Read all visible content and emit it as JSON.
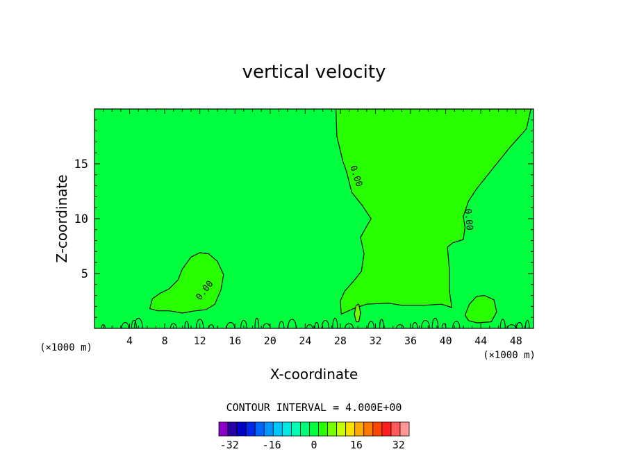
{
  "chart_data": {
    "type": "heatmap",
    "title": "vertical velocity",
    "xlabel": "X-coordinate",
    "ylabel": "Z-coordinate",
    "x_unit": "(×1000 m)",
    "x_unit_right": "(×1000 m)",
    "xlim": [
      0,
      50
    ],
    "ylim": [
      0,
      20
    ],
    "x_ticks": [
      4,
      8,
      12,
      16,
      20,
      24,
      28,
      32,
      36,
      40,
      44,
      48
    ],
    "y_ticks": [
      5,
      10,
      15
    ],
    "contour_interval_text": "CONTOUR INTERVAL = 4.000E+00",
    "contour_labels": [
      "0.00",
      "0.00",
      "0.00"
    ],
    "colorbar": {
      "min": -36,
      "max": 36,
      "step": 4,
      "tick_labels": [
        "-32",
        "-16",
        "0",
        "16",
        "32"
      ],
      "tick_values": [
        -32,
        -16,
        0,
        16,
        32
      ],
      "colors": [
        "#8a00c8",
        "#2800a8",
        "#0000c8",
        "#0028e8",
        "#0064ff",
        "#0096ff",
        "#00c8ff",
        "#00e8e8",
        "#00ffb4",
        "#00ff78",
        "#00ff3c",
        "#28ff00",
        "#78ff00",
        "#c8ff00",
        "#ffe100",
        "#ffaa00",
        "#ff7800",
        "#ff4600",
        "#ff1e1e",
        "#ff5a5a",
        "#ff9696"
      ]
    },
    "background_color": "#00ff3c",
    "regions": [
      {
        "name": "updraft-column",
        "color": "#28ff00",
        "outline": [
          [
            27.5,
            20
          ],
          [
            27.6,
            17.5
          ],
          [
            28.3,
            15.2
          ],
          [
            28.7,
            14.3
          ],
          [
            29.3,
            12.4
          ],
          [
            30.5,
            11.2
          ],
          [
            31.5,
            10
          ],
          [
            31,
            9.3
          ],
          [
            30.3,
            8.3
          ],
          [
            30.7,
            6.8
          ],
          [
            30.4,
            5.2
          ],
          [
            29.5,
            4.3
          ],
          [
            28.5,
            3.4
          ],
          [
            28,
            2.5
          ],
          [
            28.1,
            1.3
          ],
          [
            29.5,
            1.8
          ],
          [
            31,
            2.2
          ],
          [
            33.5,
            2.3
          ],
          [
            35,
            2.1
          ],
          [
            37.5,
            2.1
          ],
          [
            39.5,
            2.2
          ],
          [
            40.7,
            1.9
          ],
          [
            40.4,
            3.5
          ],
          [
            40.4,
            5.5
          ],
          [
            40.2,
            7.4
          ],
          [
            40.8,
            7.8
          ],
          [
            42,
            8.1
          ],
          [
            42.2,
            9.2
          ],
          [
            42,
            10.2
          ],
          [
            42.6,
            11.6
          ],
          [
            43.5,
            12.7
          ],
          [
            45.5,
            14.7
          ],
          [
            47.2,
            16.4
          ],
          [
            49.2,
            18.2
          ],
          [
            49.7,
            20
          ]
        ]
      },
      {
        "name": "low-left-lobe",
        "color": "#28ff00",
        "outline": [
          [
            6.3,
            1.8
          ],
          [
            6.6,
            2.7
          ],
          [
            7.5,
            3.2
          ],
          [
            8.5,
            3.6
          ],
          [
            9.5,
            4.4
          ],
          [
            10,
            5.4
          ],
          [
            11,
            6.5
          ],
          [
            12,
            6.9
          ],
          [
            13,
            6.8
          ],
          [
            14,
            6.1
          ],
          [
            14.7,
            4.9
          ],
          [
            14.4,
            3.5
          ],
          [
            13.7,
            2.2
          ],
          [
            12.7,
            1.7
          ],
          [
            11.5,
            1.6
          ],
          [
            10,
            1.4
          ],
          [
            8.5,
            1.6
          ],
          [
            7.2,
            1.6
          ]
        ]
      },
      {
        "name": "right-bump",
        "color": "#28ff00",
        "outline": [
          [
            42.2,
            1.2
          ],
          [
            42.7,
            2.2
          ],
          [
            43.5,
            2.9
          ],
          [
            44.4,
            3
          ],
          [
            45.5,
            2.6
          ],
          [
            45.8,
            1.5
          ],
          [
            45.2,
            0.6
          ],
          [
            43.6,
            0.5
          ],
          [
            42.6,
            0.7
          ]
        ]
      },
      {
        "name": "small-cell",
        "color": "#78ff00",
        "outline": [
          [
            29.6,
            1.3
          ],
          [
            29.8,
            2.1
          ],
          [
            30.1,
            2.2
          ],
          [
            30.3,
            1.4
          ],
          [
            30.1,
            0.6
          ],
          [
            29.8,
            0.6
          ]
        ]
      }
    ]
  }
}
